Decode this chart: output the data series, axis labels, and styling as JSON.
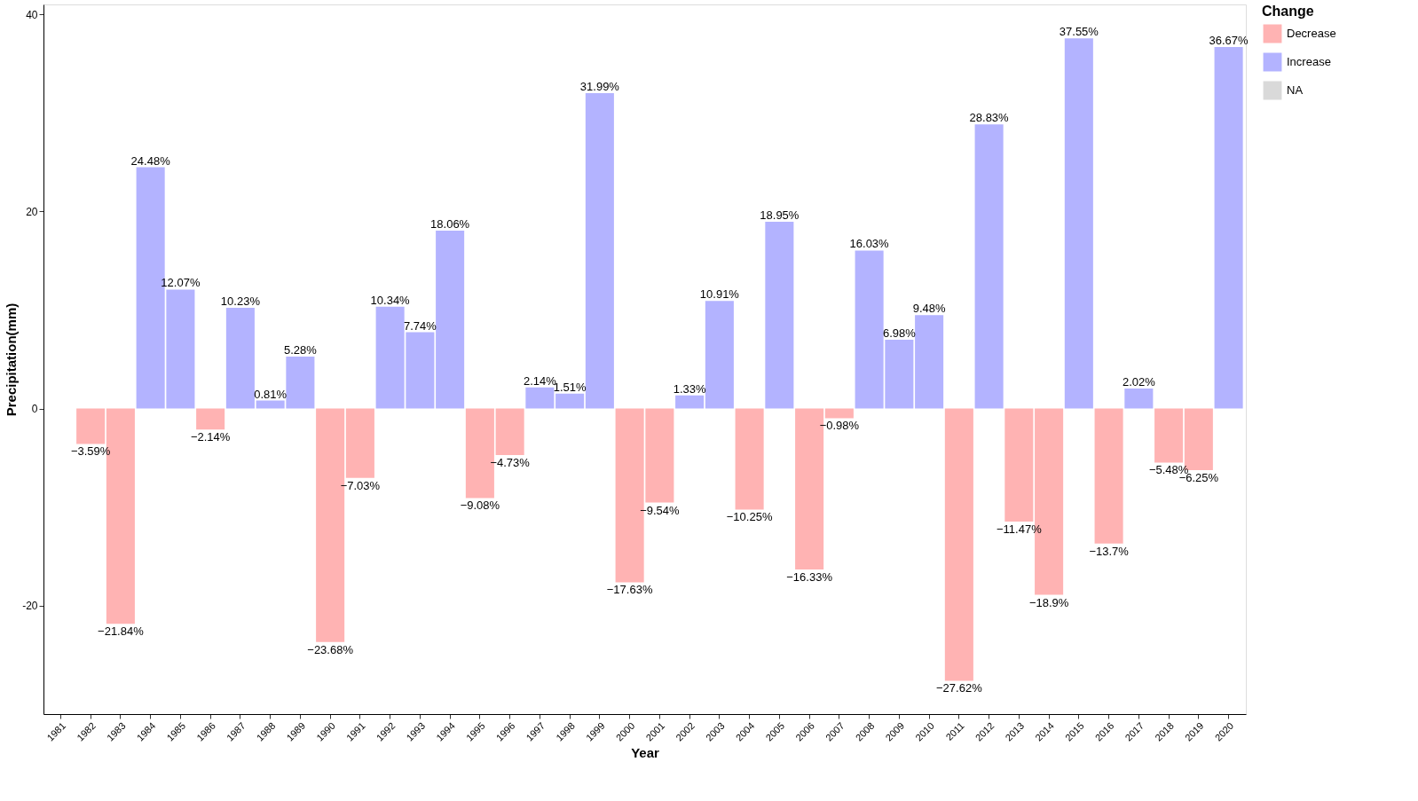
{
  "chart_data": {
    "type": "bar",
    "xlabel": "Year",
    "ylabel": "Precipitation(mm)",
    "legend_title": "Change",
    "legend": "right",
    "grid": false,
    "categories": [
      "1981",
      "1982",
      "1983",
      "1984",
      "1985",
      "1986",
      "1987",
      "1988",
      "1989",
      "1990",
      "1991",
      "1992",
      "1993",
      "1994",
      "1995",
      "1996",
      "1997",
      "1998",
      "1999",
      "2000",
      "2001",
      "2002",
      "2003",
      "2004",
      "2005",
      "2006",
      "2007",
      "2008",
      "2009",
      "2010",
      "2011",
      "2012",
      "2013",
      "2014",
      "2015",
      "2016",
      "2017",
      "2018",
      "2019",
      "2020"
    ],
    "ylim": [
      -31,
      41
    ],
    "yticks": [
      {
        "value": -20,
        "label": "-20"
      },
      0,
      20,
      40
    ],
    "series": [
      {
        "name": "Decrease",
        "color": "#ffb3b3",
        "values": [
          null,
          -3.59,
          -21.84,
          null,
          null,
          -2.14,
          null,
          null,
          null,
          -23.68,
          -7.03,
          null,
          null,
          null,
          -9.08,
          -4.73,
          null,
          null,
          null,
          -17.63,
          -9.54,
          null,
          null,
          -10.25,
          null,
          -16.33,
          -0.98,
          null,
          null,
          null,
          -27.62,
          null,
          -11.47,
          -18.9,
          null,
          -13.7,
          null,
          -5.48,
          -6.25,
          null
        ],
        "value_labels": [
          null,
          "−3.59%",
          "−21.84%",
          null,
          null,
          "−2.14%",
          null,
          null,
          null,
          "−23.68%",
          "−7.03%",
          null,
          null,
          null,
          "−9.08%",
          "−4.73%",
          null,
          null,
          null,
          "−17.63%",
          "−9.54%",
          null,
          null,
          "−10.25%",
          null,
          "−16.33%",
          "−0.98%",
          null,
          null,
          null,
          "−27.62%",
          null,
          "−11.47%",
          "−18.9%",
          null,
          "−13.7%",
          null,
          "−5.48%",
          "−6.25%",
          null
        ]
      },
      {
        "name": "Increase",
        "color": "#b3b3ff",
        "values": [
          null,
          null,
          null,
          24.48,
          12.07,
          null,
          10.23,
          0.81,
          5.28,
          null,
          null,
          10.34,
          7.74,
          18.06,
          null,
          null,
          2.14,
          1.51,
          31.99,
          null,
          null,
          1.33,
          10.91,
          null,
          18.95,
          null,
          null,
          16.03,
          6.98,
          9.48,
          null,
          28.83,
          null,
          null,
          37.55,
          null,
          2.02,
          null,
          null,
          36.67
        ],
        "value_labels": [
          null,
          null,
          null,
          "24.48%",
          "12.07%",
          null,
          "10.23%",
          "0.81%",
          "5.28%",
          null,
          null,
          "10.34%",
          "7.74%",
          "18.06%",
          null,
          null,
          "2.14%",
          "1.51%",
          "31.99%",
          null,
          null,
          "1.33%",
          "10.91%",
          null,
          "18.95%",
          null,
          null,
          "16.03%",
          "6.98%",
          "9.48%",
          null,
          "28.83%",
          null,
          null,
          "37.55%",
          null,
          "2.02%",
          null,
          null,
          "36.67%"
        ]
      },
      {
        "name": "NA",
        "color": "#d9d9d9",
        "values": [
          null,
          null,
          null,
          null,
          null,
          null,
          null,
          null,
          null,
          null,
          null,
          null,
          null,
          null,
          null,
          null,
          null,
          null,
          null,
          null,
          null,
          null,
          null,
          null,
          null,
          null,
          null,
          null,
          null,
          null,
          null,
          null,
          null,
          null,
          null,
          null,
          null,
          null,
          null,
          null
        ]
      }
    ]
  }
}
